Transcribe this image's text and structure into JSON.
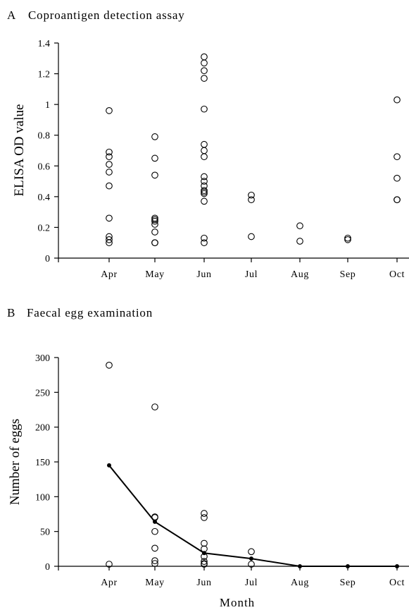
{
  "chart_data": [
    {
      "type": "scatter",
      "panel_label": "A",
      "title": "Coproantigen detection assay",
      "xlabel": "",
      "ylabel": "ELISA OD value",
      "ylim": [
        0,
        1.4
      ],
      "yticks": [
        "0",
        "0.2",
        "0.4",
        "0.6",
        "0.8",
        "1",
        "1.2",
        "1.4"
      ],
      "categories": [
        "Apr",
        "May",
        "Jun",
        "Jul",
        "Aug",
        "Sep",
        "Oct"
      ],
      "points": [
        [
          0.96,
          0.69,
          0.66,
          0.61,
          0.56,
          0.47,
          0.26,
          0.14,
          0.12,
          0.1
        ],
        [
          0.79,
          0.65,
          0.54,
          0.26,
          0.25,
          0.24,
          0.22,
          0.17,
          0.1,
          0.1
        ],
        [
          1.31,
          1.27,
          1.22,
          1.17,
          0.97,
          0.74,
          0.7,
          0.66,
          0.53,
          0.5,
          0.47,
          0.44,
          0.43,
          0.42,
          0.37,
          0.13,
          0.1
        ],
        [
          0.41,
          0.38,
          0.14
        ],
        [
          0.21,
          0.11
        ],
        [
          0.13,
          0.12
        ],
        [
          1.03,
          0.66,
          0.52,
          0.38,
          0.38
        ]
      ],
      "marker": "open-circle"
    },
    {
      "type": "scatter",
      "panel_label": "B",
      "title": "Faecal egg examination",
      "xlabel": "Month",
      "ylabel": "Number of eggs",
      "ylim": [
        0,
        300
      ],
      "yticks": [
        "0",
        "50",
        "100",
        "150",
        "200",
        "250",
        "300"
      ],
      "categories": [
        "Apr",
        "May",
        "Jun",
        "Jul",
        "Aug",
        "Sep",
        "Oct"
      ],
      "points": [
        [
          289,
          3
        ],
        [
          229,
          71,
          70,
          50,
          26,
          8,
          4
        ],
        [
          76,
          70,
          33,
          25,
          14,
          7,
          4,
          3
        ],
        [
          21,
          3
        ],
        [],
        [],
        []
      ],
      "mean_line": [
        145,
        64,
        19,
        11,
        0,
        0,
        0
      ],
      "marker": "open-circle",
      "mean_marker": "filled-circle"
    }
  ]
}
